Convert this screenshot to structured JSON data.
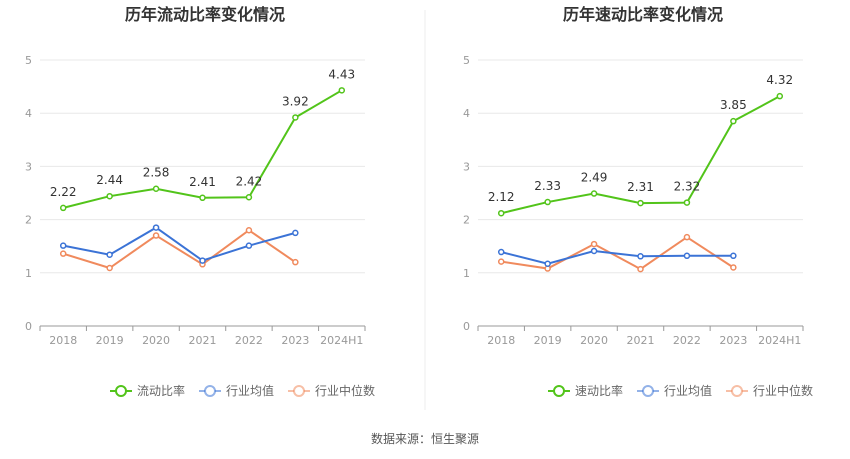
{
  "chart_data": [
    {
      "type": "line",
      "title": "历年流动比率变化情况",
      "categories": [
        "2018",
        "2019",
        "2020",
        "2021",
        "2022",
        "2023",
        "2024H1"
      ],
      "ylim": [
        0,
        5
      ],
      "yticks": [
        "0",
        "1",
        "2",
        "3",
        "4",
        "5"
      ],
      "grid": true,
      "legend_position": "bottom-center",
      "series": [
        {
          "name": "流动比率",
          "color": "#52c41a",
          "labeled": true,
          "values": [
            2.22,
            2.44,
            2.58,
            2.41,
            2.42,
            3.92,
            4.43
          ],
          "labels": [
            "2.22",
            "2.44",
            "2.58",
            "2.41",
            "2.42",
            "3.92",
            "4.43"
          ]
        },
        {
          "name": "行业均值",
          "color": "#3b73d6",
          "labeled": false,
          "values": [
            1.51,
            1.34,
            1.85,
            1.23,
            1.51,
            1.75,
            null
          ]
        },
        {
          "name": "行业中位数",
          "color": "#f08a5d",
          "labeled": false,
          "values": [
            1.36,
            1.09,
            1.7,
            1.16,
            1.8,
            1.2,
            null
          ]
        }
      ]
    },
    {
      "type": "line",
      "title": "历年速动比率变化情况",
      "categories": [
        "2018",
        "2019",
        "2020",
        "2021",
        "2022",
        "2023",
        "2024H1"
      ],
      "ylim": [
        0,
        5
      ],
      "yticks": [
        "0",
        "1",
        "2",
        "3",
        "4",
        "5"
      ],
      "grid": true,
      "legend_position": "bottom-center",
      "series": [
        {
          "name": "速动比率",
          "color": "#52c41a",
          "labeled": true,
          "values": [
            2.12,
            2.33,
            2.49,
            2.31,
            2.32,
            3.85,
            4.32
          ],
          "labels": [
            "2.12",
            "2.33",
            "2.49",
            "2.31",
            "2.32",
            "3.85",
            "4.32"
          ]
        },
        {
          "name": "行业均值",
          "color": "#3b73d6",
          "labeled": false,
          "values": [
            1.39,
            1.17,
            1.41,
            1.31,
            1.32,
            1.32,
            null
          ]
        },
        {
          "name": "行业中位数",
          "color": "#f08a5d",
          "labeled": false,
          "values": [
            1.21,
            1.08,
            1.54,
            1.07,
            1.67,
            1.1,
            null
          ]
        }
      ]
    }
  ],
  "source": "数据来源：恒生聚源"
}
